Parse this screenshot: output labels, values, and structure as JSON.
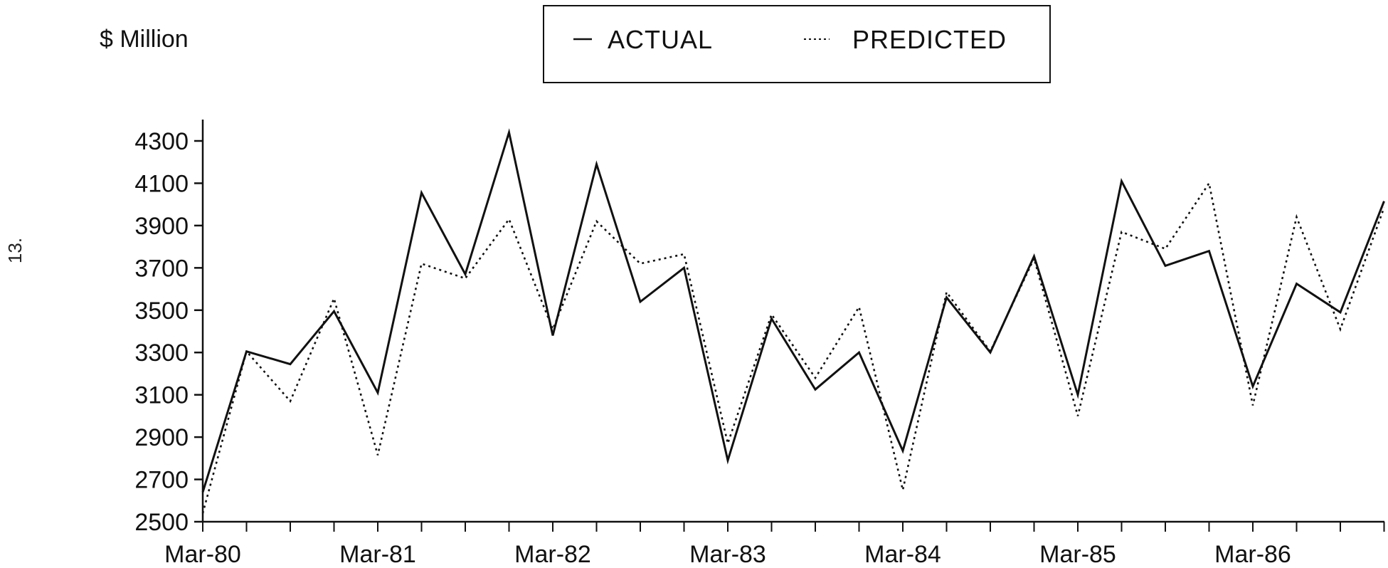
{
  "page": {
    "page_number": "13."
  },
  "chart_data": {
    "type": "line",
    "title": "",
    "ylabel": "$ Million",
    "xlabel": "",
    "ylim": [
      2500,
      4400
    ],
    "yticks": [
      2500,
      2700,
      2900,
      3100,
      3300,
      3500,
      3700,
      3900,
      4100,
      4300
    ],
    "x_tick_labels": [
      "Mar-80",
      "Mar-81",
      "Mar-82",
      "Mar-83",
      "Mar-84",
      "Mar-85",
      "Mar-86"
    ],
    "x_tick_label_index": [
      0,
      4,
      8,
      12,
      16,
      20,
      24
    ],
    "x_periods": 28,
    "grid": false,
    "legend_position": "top-center",
    "series": [
      {
        "name": "ACTUAL",
        "style": "solid",
        "color": "#111111",
        "values": [
          2640,
          3305,
          3245,
          3495,
          3110,
          4055,
          3670,
          4340,
          3380,
          4190,
          3540,
          3700,
          2790,
          3460,
          3125,
          3300,
          2835,
          3560,
          3300,
          3755,
          3100,
          4110,
          3710,
          3780,
          3140,
          3625,
          3490,
          4015
        ]
      },
      {
        "name": "PREDICTED",
        "style": "dotted",
        "color": "#111111",
        "values": [
          2540,
          3305,
          3070,
          3555,
          2815,
          3720,
          3650,
          3930,
          3410,
          3920,
          3720,
          3765,
          2870,
          3480,
          3180,
          3515,
          2650,
          3585,
          3305,
          3745,
          3000,
          3870,
          3790,
          4100,
          3050,
          3940,
          3410,
          3985
        ]
      }
    ]
  }
}
